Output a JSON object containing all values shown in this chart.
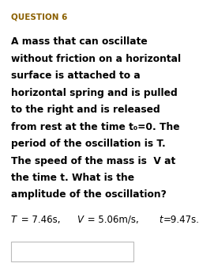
{
  "title": "QUESTION 6",
  "title_color": "#8B6000",
  "title_fontsize": 7.5,
  "body_lines": [
    "A mass that can oscillate",
    "without friction on a horizontal",
    "surface is attached to a",
    "horizontal spring and is pulled",
    "to the right and is released",
    "from rest at the time t₀=0. The",
    "period of the oscillation is T.",
    "The speed of the mass is  V at",
    "the time t. What is the",
    "amplitude of the oscillation?"
  ],
  "body_fontsize": 8.8,
  "body_color": "#000000",
  "formula_parts": [
    {
      "text": "T",
      "italic": true,
      "bold": false
    },
    {
      "text": " = 7.46s, ",
      "italic": false,
      "bold": false
    },
    {
      "text": "V",
      "italic": true,
      "bold": false
    },
    {
      "text": " = 5.06m/s, ",
      "italic": false,
      "bold": false
    },
    {
      "text": "t",
      "italic": true,
      "bold": false
    },
    {
      "text": "=9.47s.",
      "italic": false,
      "bold": false
    }
  ],
  "formula_fontsize": 8.5,
  "formula_color": "#000000",
  "bg_color": "#ffffff",
  "box_color": "#ffffff",
  "box_border_color": "#bbbbbb",
  "figsize": [
    2.71,
    3.37
  ],
  "dpi": 100
}
